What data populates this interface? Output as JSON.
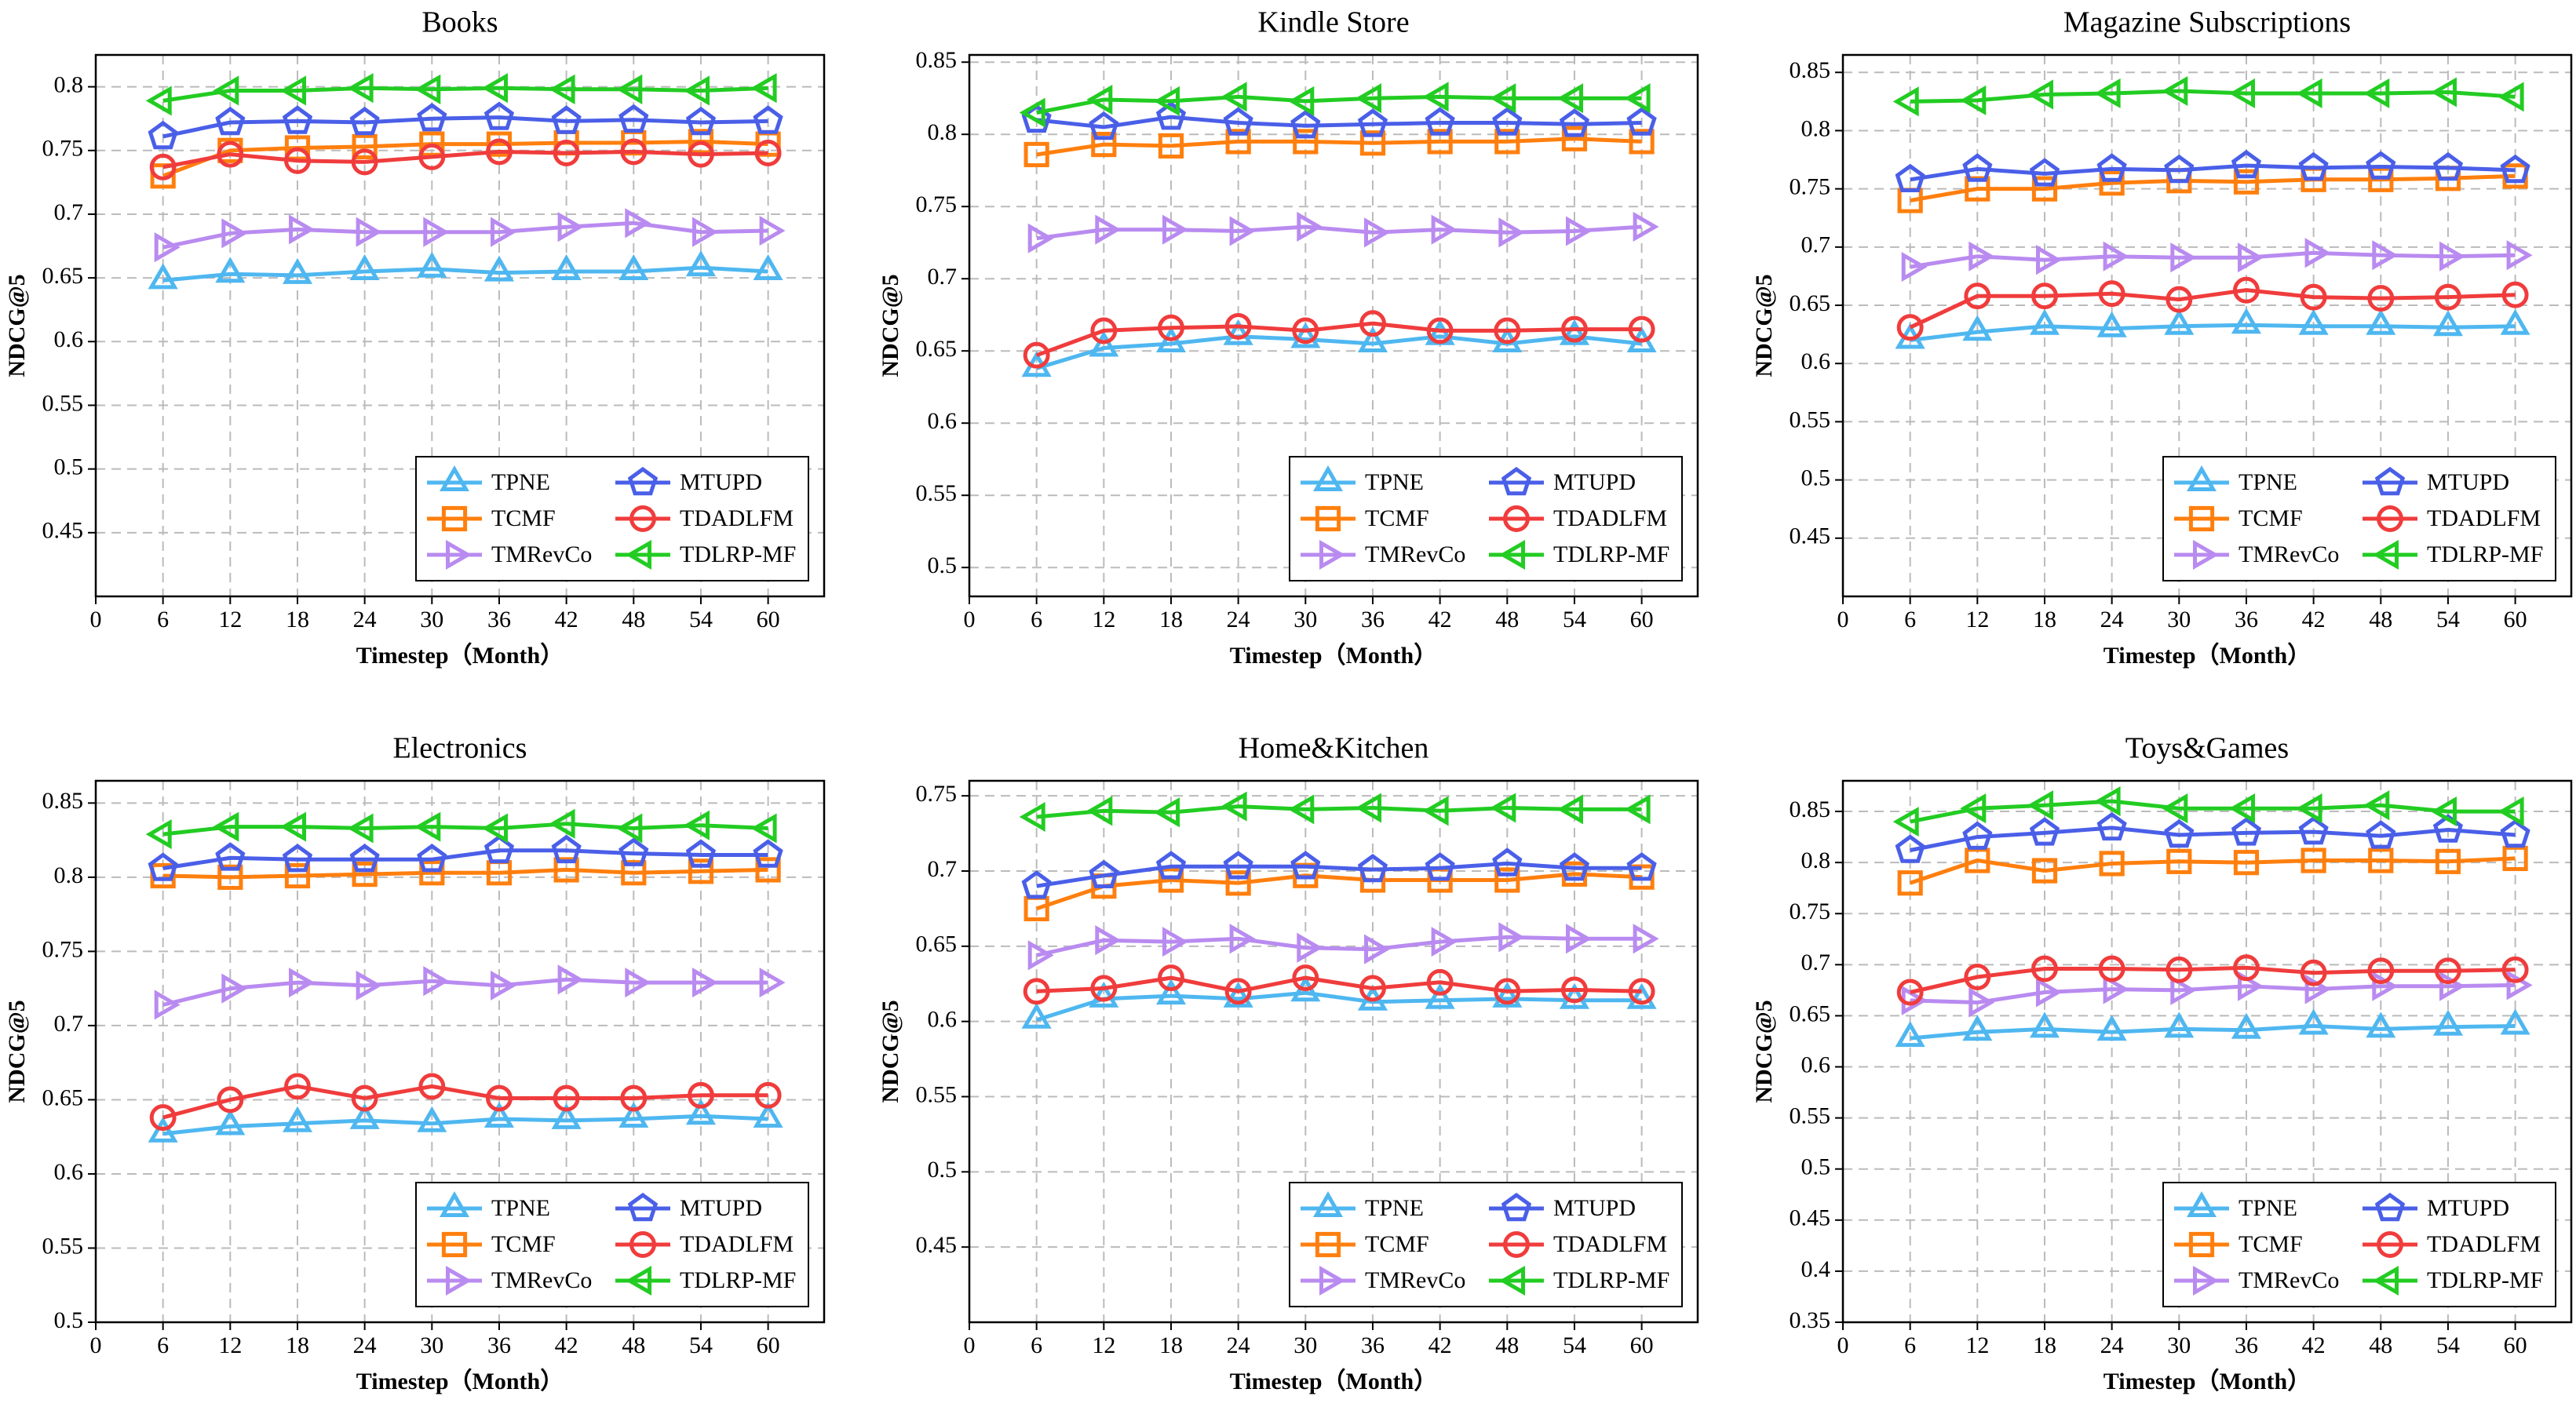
{
  "chart_data": [
    {
      "type": "line",
      "title": "Books",
      "xlabel": "Timestep（Month）",
      "ylabel": "NDCG@5",
      "x": [
        6,
        12,
        18,
        24,
        30,
        36,
        42,
        48,
        54,
        60
      ],
      "xlim": [
        0,
        65
      ],
      "xticks": [
        0,
        6,
        12,
        18,
        24,
        30,
        36,
        42,
        48,
        54,
        60
      ],
      "ylim": [
        0.4,
        0.825
      ],
      "yticks": [
        0.45,
        0.5,
        0.55,
        0.6,
        0.65,
        0.7,
        0.75,
        0.8
      ],
      "grid": true,
      "legend": "lower right",
      "series": [
        {
          "name": "TPNE",
          "color": "#4fb7f0",
          "marker": "triangle-up",
          "values": [
            0.648,
            0.653,
            0.652,
            0.655,
            0.657,
            0.654,
            0.655,
            0.655,
            0.658,
            0.655
          ]
        },
        {
          "name": "TCMF",
          "color": "#ff7f0e",
          "marker": "square",
          "values": [
            0.73,
            0.75,
            0.752,
            0.753,
            0.755,
            0.755,
            0.756,
            0.756,
            0.757,
            0.755
          ]
        },
        {
          "name": "TMRevCo",
          "color": "#b98bf0",
          "marker": "triangle-right",
          "values": [
            0.674,
            0.685,
            0.688,
            0.686,
            0.686,
            0.686,
            0.69,
            0.693,
            0.686,
            0.687
          ]
        },
        {
          "name": "MTUPD",
          "color": "#4a5fe8",
          "marker": "pentagon",
          "values": [
            0.761,
            0.772,
            0.773,
            0.772,
            0.775,
            0.776,
            0.773,
            0.774,
            0.772,
            0.773
          ]
        },
        {
          "name": "TDADLFM",
          "color": "#f03c3c",
          "marker": "circle",
          "values": [
            0.737,
            0.747,
            0.742,
            0.741,
            0.745,
            0.749,
            0.748,
            0.749,
            0.747,
            0.748
          ]
        },
        {
          "name": "TDLRP-MF",
          "color": "#22cc22",
          "marker": "triangle-left",
          "values": [
            0.789,
            0.797,
            0.797,
            0.799,
            0.798,
            0.799,
            0.798,
            0.798,
            0.797,
            0.799
          ]
        }
      ]
    },
    {
      "type": "line",
      "title": "Kindle Store",
      "xlabel": "Timestep（Month）",
      "ylabel": "NDCG@5",
      "x": [
        6,
        12,
        18,
        24,
        30,
        36,
        42,
        48,
        54,
        60
      ],
      "xlim": [
        0,
        65
      ],
      "xticks": [
        0,
        6,
        12,
        18,
        24,
        30,
        36,
        42,
        48,
        54,
        60
      ],
      "ylim": [
        0.48,
        0.855
      ],
      "yticks": [
        0.5,
        0.55,
        0.6,
        0.65,
        0.7,
        0.75,
        0.8,
        0.85
      ],
      "grid": true,
      "legend": "lower right",
      "series": [
        {
          "name": "TPNE",
          "color": "#4fb7f0",
          "marker": "triangle-up",
          "values": [
            0.638,
            0.652,
            0.655,
            0.66,
            0.658,
            0.655,
            0.66,
            0.655,
            0.66,
            0.655
          ]
        },
        {
          "name": "TCMF",
          "color": "#ff7f0e",
          "marker": "square",
          "values": [
            0.786,
            0.793,
            0.792,
            0.795,
            0.795,
            0.794,
            0.795,
            0.795,
            0.797,
            0.795
          ]
        },
        {
          "name": "TMRevCo",
          "color": "#b98bf0",
          "marker": "triangle-right",
          "values": [
            0.728,
            0.734,
            0.734,
            0.733,
            0.736,
            0.732,
            0.734,
            0.732,
            0.733,
            0.736
          ]
        },
        {
          "name": "MTUPD",
          "color": "#4a5fe8",
          "marker": "pentagon",
          "values": [
            0.81,
            0.805,
            0.812,
            0.808,
            0.806,
            0.807,
            0.808,
            0.808,
            0.807,
            0.808
          ]
        },
        {
          "name": "TDADLFM",
          "color": "#f03c3c",
          "marker": "circle",
          "values": [
            0.647,
            0.664,
            0.666,
            0.667,
            0.664,
            0.669,
            0.664,
            0.664,
            0.665,
            0.665
          ]
        },
        {
          "name": "TDLRP-MF",
          "color": "#22cc22",
          "marker": "triangle-left",
          "values": [
            0.815,
            0.824,
            0.823,
            0.826,
            0.823,
            0.825,
            0.826,
            0.825,
            0.825,
            0.825
          ]
        }
      ]
    },
    {
      "type": "line",
      "title": "Magazine Subscriptions",
      "xlabel": "Timestep（Month）",
      "ylabel": "NDCG@5",
      "x": [
        6,
        12,
        18,
        24,
        30,
        36,
        42,
        48,
        54,
        60
      ],
      "xlim": [
        0,
        65
      ],
      "xticks": [
        0,
        6,
        12,
        18,
        24,
        30,
        36,
        42,
        48,
        54,
        60
      ],
      "ylim": [
        0.4,
        0.865
      ],
      "yticks": [
        0.45,
        0.5,
        0.55,
        0.6,
        0.65,
        0.7,
        0.75,
        0.8,
        0.85
      ],
      "grid": true,
      "legend": "lower right",
      "series": [
        {
          "name": "TPNE",
          "color": "#4fb7f0",
          "marker": "triangle-up",
          "values": [
            0.62,
            0.627,
            0.632,
            0.63,
            0.632,
            0.633,
            0.632,
            0.632,
            0.631,
            0.632
          ]
        },
        {
          "name": "TCMF",
          "color": "#ff7f0e",
          "marker": "square",
          "values": [
            0.74,
            0.75,
            0.75,
            0.755,
            0.757,
            0.756,
            0.758,
            0.758,
            0.759,
            0.761
          ]
        },
        {
          "name": "TMRevCo",
          "color": "#b98bf0",
          "marker": "triangle-right",
          "values": [
            0.683,
            0.692,
            0.689,
            0.692,
            0.691,
            0.691,
            0.695,
            0.693,
            0.692,
            0.693
          ]
        },
        {
          "name": "MTUPD",
          "color": "#4a5fe8",
          "marker": "pentagon",
          "values": [
            0.758,
            0.767,
            0.763,
            0.767,
            0.766,
            0.77,
            0.768,
            0.769,
            0.768,
            0.766
          ]
        },
        {
          "name": "TDADLFM",
          "color": "#f03c3c",
          "marker": "circle",
          "values": [
            0.631,
            0.658,
            0.658,
            0.66,
            0.655,
            0.663,
            0.657,
            0.656,
            0.657,
            0.659
          ]
        },
        {
          "name": "TDLRP-MF",
          "color": "#22cc22",
          "marker": "triangle-left",
          "values": [
            0.825,
            0.826,
            0.831,
            0.832,
            0.834,
            0.832,
            0.832,
            0.832,
            0.833,
            0.829
          ]
        }
      ]
    },
    {
      "type": "line",
      "title": "Electronics",
      "xlabel": "Timestep（Month）",
      "ylabel": "NDCG@5",
      "x": [
        6,
        12,
        18,
        24,
        30,
        36,
        42,
        48,
        54,
        60
      ],
      "xlim": [
        0,
        65
      ],
      "xticks": [
        0,
        6,
        12,
        18,
        24,
        30,
        36,
        42,
        48,
        54,
        60
      ],
      "ylim": [
        0.5,
        0.865
      ],
      "yticks": [
        0.5,
        0.55,
        0.6,
        0.65,
        0.7,
        0.75,
        0.8,
        0.85
      ],
      "grid": true,
      "legend": "lower right",
      "series": [
        {
          "name": "TPNE",
          "color": "#4fb7f0",
          "marker": "triangle-up",
          "values": [
            0.627,
            0.632,
            0.634,
            0.636,
            0.634,
            0.637,
            0.636,
            0.637,
            0.639,
            0.637
          ]
        },
        {
          "name": "TCMF",
          "color": "#ff7f0e",
          "marker": "square",
          "values": [
            0.801,
            0.8,
            0.801,
            0.802,
            0.803,
            0.803,
            0.805,
            0.803,
            0.804,
            0.805
          ]
        },
        {
          "name": "TMRevCo",
          "color": "#b98bf0",
          "marker": "triangle-right",
          "values": [
            0.714,
            0.725,
            0.729,
            0.727,
            0.73,
            0.727,
            0.731,
            0.729,
            0.729,
            0.729
          ]
        },
        {
          "name": "MTUPD",
          "color": "#4a5fe8",
          "marker": "pentagon",
          "values": [
            0.806,
            0.813,
            0.812,
            0.812,
            0.812,
            0.818,
            0.818,
            0.816,
            0.815,
            0.815
          ]
        },
        {
          "name": "TDADLFM",
          "color": "#f03c3c",
          "marker": "circle",
          "values": [
            0.638,
            0.65,
            0.659,
            0.651,
            0.659,
            0.651,
            0.651,
            0.651,
            0.653,
            0.653
          ]
        },
        {
          "name": "TDLRP-MF",
          "color": "#22cc22",
          "marker": "triangle-left",
          "values": [
            0.829,
            0.834,
            0.834,
            0.833,
            0.834,
            0.833,
            0.836,
            0.833,
            0.835,
            0.833
          ]
        }
      ]
    },
    {
      "type": "line",
      "title": "Home&Kitchen",
      "xlabel": "Timestep（Month）",
      "ylabel": "NDCG@5",
      "x": [
        6,
        12,
        18,
        24,
        30,
        36,
        42,
        48,
        54,
        60
      ],
      "xlim": [
        0,
        65
      ],
      "xticks": [
        0,
        6,
        12,
        18,
        24,
        30,
        36,
        42,
        48,
        54,
        60
      ],
      "ylim": [
        0.4,
        0.76
      ],
      "yticks": [
        0.45,
        0.5,
        0.55,
        0.6,
        0.65,
        0.7,
        0.75
      ],
      "grid": true,
      "legend": "lower right",
      "series": [
        {
          "name": "TPNE",
          "color": "#4fb7f0",
          "marker": "triangle-up",
          "values": [
            0.601,
            0.615,
            0.617,
            0.615,
            0.619,
            0.613,
            0.614,
            0.615,
            0.614,
            0.614
          ]
        },
        {
          "name": "TCMF",
          "color": "#ff7f0e",
          "marker": "square",
          "values": [
            0.675,
            0.69,
            0.694,
            0.692,
            0.697,
            0.694,
            0.694,
            0.694,
            0.698,
            0.696
          ]
        },
        {
          "name": "TMRevCo",
          "color": "#b98bf0",
          "marker": "triangle-right",
          "values": [
            0.644,
            0.654,
            0.653,
            0.655,
            0.649,
            0.648,
            0.653,
            0.656,
            0.655,
            0.655
          ]
        },
        {
          "name": "MTUPD",
          "color": "#4a5fe8",
          "marker": "pentagon",
          "values": [
            0.69,
            0.697,
            0.703,
            0.703,
            0.703,
            0.701,
            0.702,
            0.705,
            0.702,
            0.702
          ]
        },
        {
          "name": "TDADLFM",
          "color": "#f03c3c",
          "marker": "circle",
          "values": [
            0.62,
            0.622,
            0.629,
            0.62,
            0.629,
            0.622,
            0.626,
            0.62,
            0.621,
            0.62
          ]
        },
        {
          "name": "TDLRP-MF",
          "color": "#22cc22",
          "marker": "triangle-left",
          "values": [
            0.736,
            0.74,
            0.739,
            0.743,
            0.741,
            0.742,
            0.74,
            0.742,
            0.741,
            0.741
          ]
        }
      ]
    },
    {
      "type": "line",
      "title": "Toys&Games",
      "xlabel": "Timestep（Month）",
      "ylabel": "NDCG@5",
      "x": [
        6,
        12,
        18,
        24,
        30,
        36,
        42,
        48,
        54,
        60
      ],
      "xlim": [
        0,
        65
      ],
      "xticks": [
        0,
        6,
        12,
        18,
        24,
        30,
        36,
        42,
        48,
        54,
        60
      ],
      "ylim": [
        0.35,
        0.88
      ],
      "yticks": [
        0.35,
        0.4,
        0.45,
        0.5,
        0.55,
        0.6,
        0.65,
        0.7,
        0.75,
        0.8,
        0.85
      ],
      "grid": true,
      "legend": "lower right",
      "series": [
        {
          "name": "TPNE",
          "color": "#4fb7f0",
          "marker": "triangle-up",
          "values": [
            0.628,
            0.634,
            0.637,
            0.634,
            0.637,
            0.636,
            0.64,
            0.637,
            0.639,
            0.64
          ]
        },
        {
          "name": "TCMF",
          "color": "#ff7f0e",
          "marker": "square",
          "values": [
            0.78,
            0.802,
            0.792,
            0.799,
            0.801,
            0.8,
            0.802,
            0.802,
            0.801,
            0.804
          ]
        },
        {
          "name": "TMRevCo",
          "color": "#b98bf0",
          "marker": "triangle-right",
          "values": [
            0.665,
            0.663,
            0.673,
            0.676,
            0.675,
            0.679,
            0.676,
            0.679,
            0.679,
            0.68
          ]
        },
        {
          "name": "MTUPD",
          "color": "#4a5fe8",
          "marker": "pentagon",
          "values": [
            0.812,
            0.825,
            0.829,
            0.834,
            0.827,
            0.829,
            0.83,
            0.826,
            0.832,
            0.827
          ]
        },
        {
          "name": "TDADLFM",
          "color": "#f03c3c",
          "marker": "circle",
          "values": [
            0.673,
            0.688,
            0.696,
            0.696,
            0.695,
            0.697,
            0.692,
            0.694,
            0.694,
            0.695
          ]
        },
        {
          "name": "TDLRP-MF",
          "color": "#22cc22",
          "marker": "triangle-left",
          "values": [
            0.84,
            0.853,
            0.856,
            0.86,
            0.853,
            0.853,
            0.853,
            0.856,
            0.85,
            0.85
          ]
        }
      ]
    }
  ]
}
